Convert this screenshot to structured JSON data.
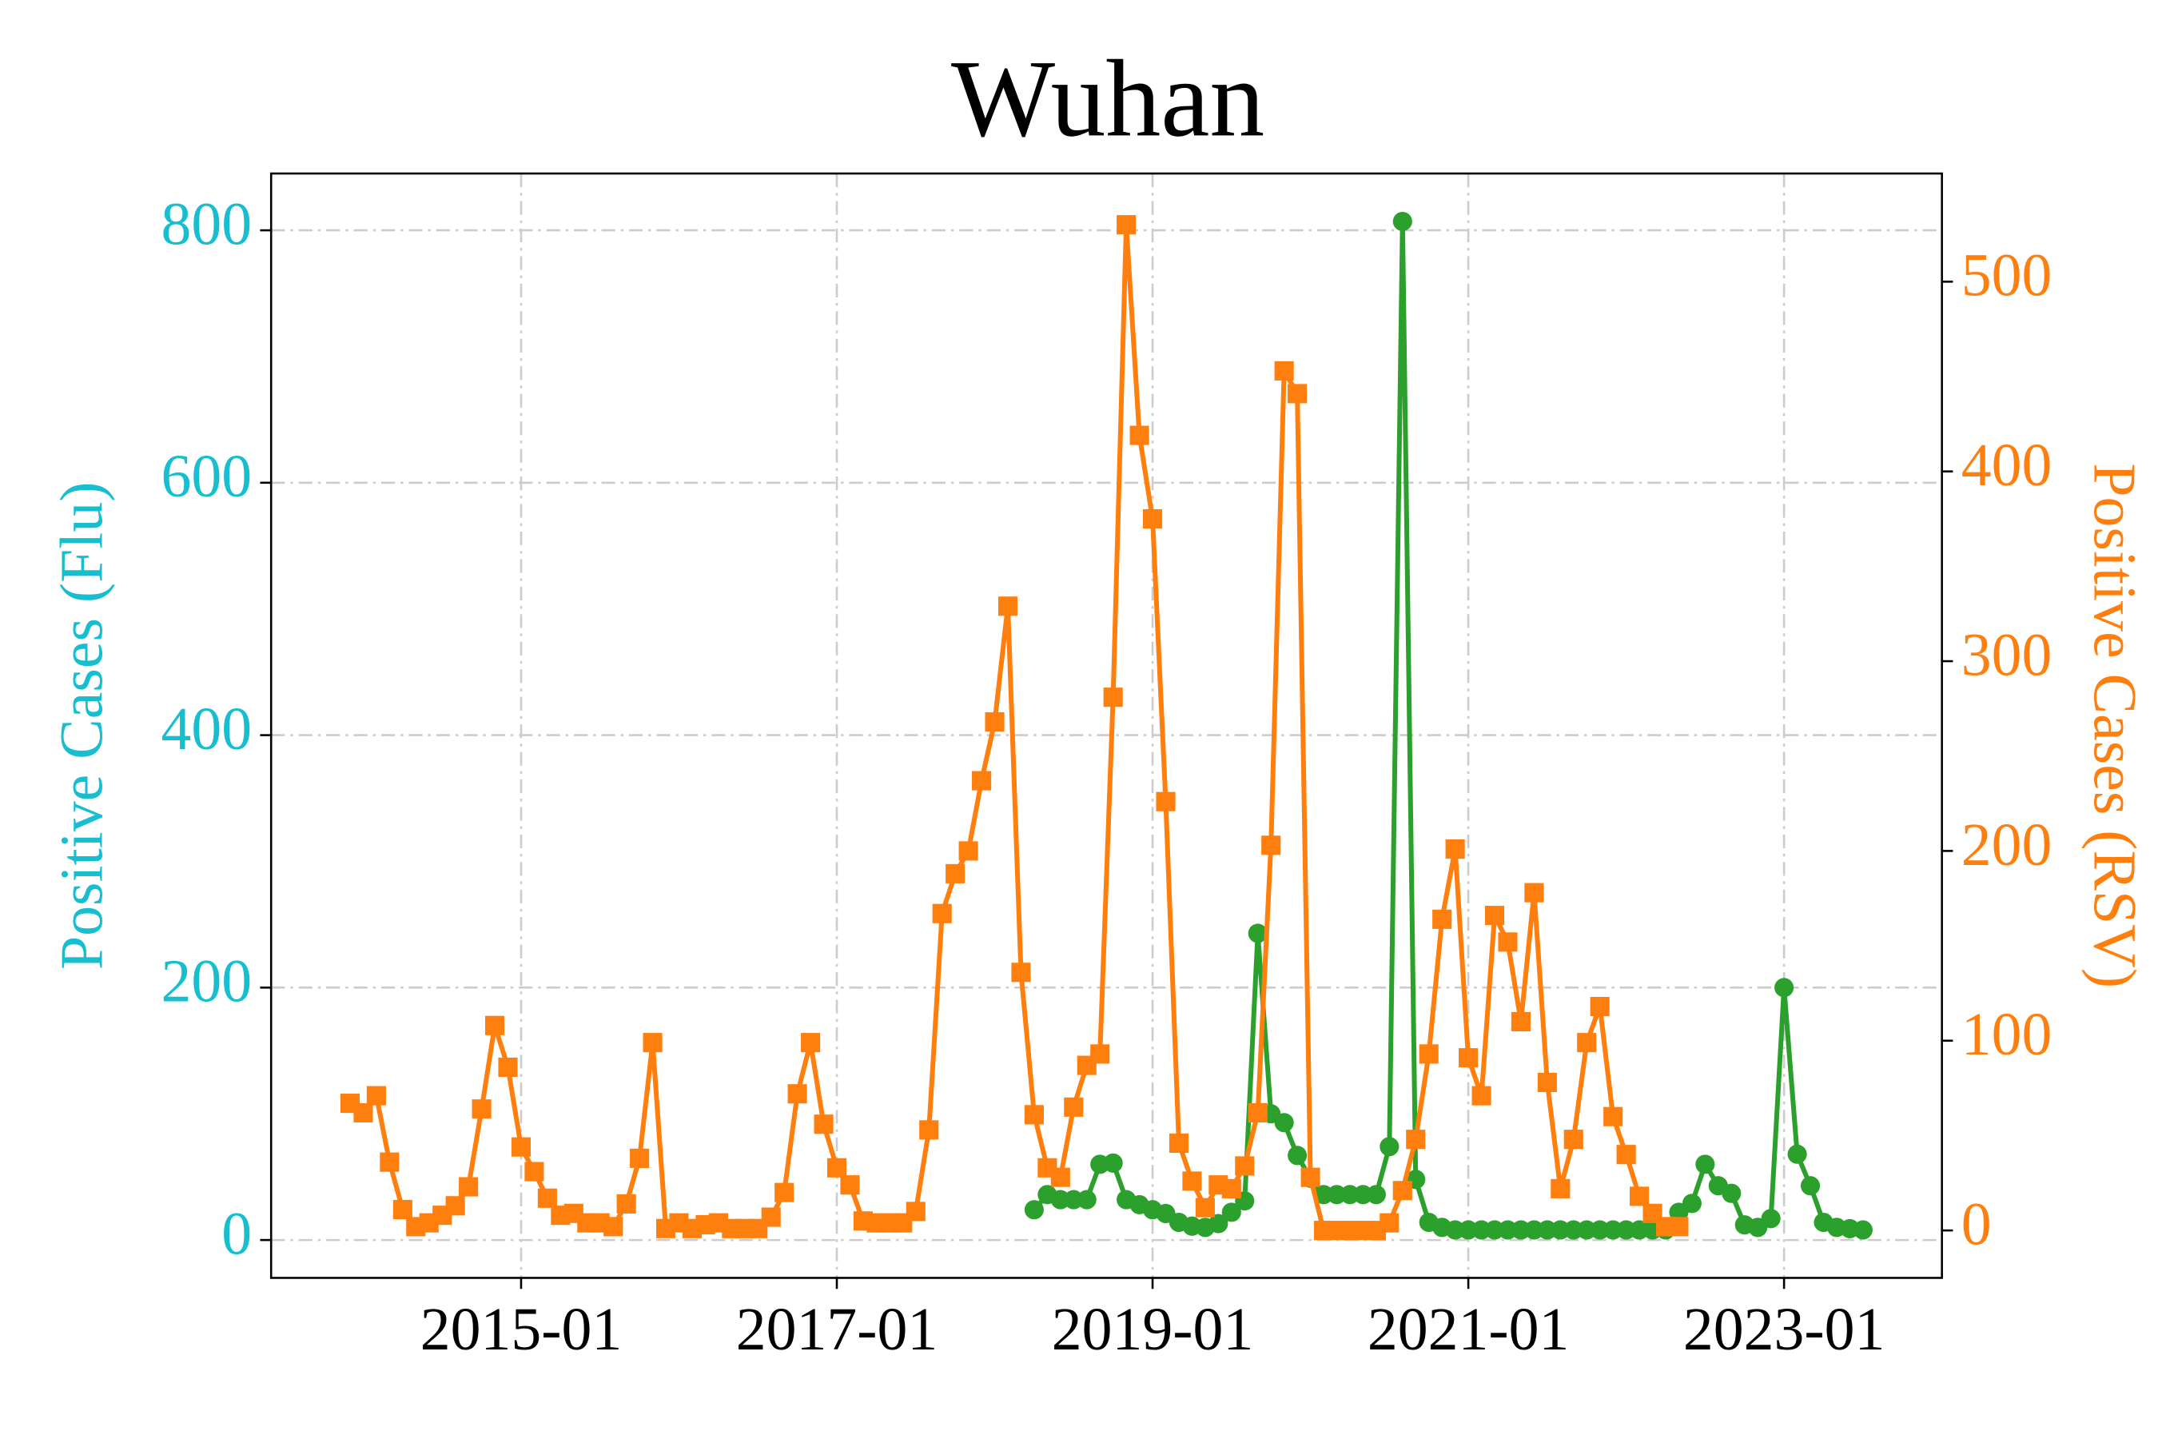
{
  "chart_data": {
    "type": "line",
    "title": "Wuhan",
    "ylabel": "Positive Cases (Flu)",
    "y2label": "Positive Cases (RSV)",
    "ylabel_color": "#17becf",
    "y2label_color": "#ff7f0e",
    "x": [
      "2013-12",
      "2014-01",
      "2014-02",
      "2014-03",
      "2014-04",
      "2014-05",
      "2014-06",
      "2014-07",
      "2014-08",
      "2014-09",
      "2014-10",
      "2014-11",
      "2014-12",
      "2015-01",
      "2015-02",
      "2015-03",
      "2015-04",
      "2015-05",
      "2015-06",
      "2015-07",
      "2015-08",
      "2015-09",
      "2015-10",
      "2015-11",
      "2015-12",
      "2016-01",
      "2016-02",
      "2016-03",
      "2016-04",
      "2016-05",
      "2016-06",
      "2016-07",
      "2016-08",
      "2016-09",
      "2016-10",
      "2016-11",
      "2016-12",
      "2017-01",
      "2017-02",
      "2017-03",
      "2017-04",
      "2017-05",
      "2017-06",
      "2017-07",
      "2017-08",
      "2017-09",
      "2017-10",
      "2017-11",
      "2017-12",
      "2018-01",
      "2018-02",
      "2018-03",
      "2018-04",
      "2018-05",
      "2018-06",
      "2018-07",
      "2018-08",
      "2018-09",
      "2018-10",
      "2018-11",
      "2018-12",
      "2019-01",
      "2019-02",
      "2019-03",
      "2019-04",
      "2019-05",
      "2019-06",
      "2019-07",
      "2019-08",
      "2019-09",
      "2019-10",
      "2019-11",
      "2019-12",
      "2020-01",
      "2020-02",
      "2020-03",
      "2020-04",
      "2020-05",
      "2020-06",
      "2020-07",
      "2020-08",
      "2020-09",
      "2020-10",
      "2020-11",
      "2020-12",
      "2021-01",
      "2021-02",
      "2021-03",
      "2021-04",
      "2021-05",
      "2021-06",
      "2021-07",
      "2021-08",
      "2021-09",
      "2021-10",
      "2021-11",
      "2021-12",
      "2022-01",
      "2022-02",
      "2022-03",
      "2022-04",
      "2022-05",
      "2022-06",
      "2022-07",
      "2022-08",
      "2022-09",
      "2022-10",
      "2022-11",
      "2022-12",
      "2023-01",
      "2023-02",
      "2023-03",
      "2023-04",
      "2023-05",
      "2023-06",
      "2023-07"
    ],
    "series": [
      {
        "color": "#2ca02c",
        "marker": "circle",
        "axis": "y",
        "values": [
          null,
          null,
          null,
          null,
          null,
          null,
          null,
          null,
          null,
          null,
          null,
          null,
          null,
          null,
          null,
          null,
          null,
          null,
          null,
          null,
          null,
          null,
          null,
          null,
          null,
          null,
          null,
          null,
          null,
          null,
          null,
          null,
          null,
          null,
          null,
          null,
          null,
          null,
          null,
          null,
          null,
          null,
          null,
          null,
          null,
          null,
          null,
          null,
          null,
          null,
          null,
          null,
          24,
          36,
          32,
          32,
          32,
          60,
          61,
          32,
          28,
          24,
          21,
          14,
          11,
          10,
          13,
          22,
          31,
          243,
          100,
          93,
          67,
          49,
          36,
          36,
          36,
          36,
          36,
          74,
          807,
          48,
          14,
          10,
          8,
          8,
          8,
          8,
          8,
          8,
          8,
          8,
          8,
          8,
          8,
          8,
          8,
          8,
          8,
          8,
          8,
          22,
          29,
          60,
          43,
          37,
          12,
          10,
          17,
          200,
          68,
          43,
          14,
          10,
          9,
          8
        ]
      },
      {
        "color": "#ff7f0e",
        "marker": "square",
        "axis": "y2",
        "values": [
          67,
          62,
          71,
          36,
          11,
          2,
          4,
          8,
          13,
          23,
          64,
          108,
          86,
          44,
          31,
          17,
          8,
          9,
          4,
          4,
          2,
          14,
          38,
          99,
          1,
          4,
          1,
          3,
          4,
          1,
          1,
          1,
          7,
          20,
          72,
          99,
          56,
          33,
          24,
          5,
          4,
          4,
          4,
          10,
          53,
          167,
          188,
          200,
          237,
          268,
          329,
          136,
          61,
          33,
          28,
          65,
          87,
          93,
          281,
          530,
          419,
          375,
          226,
          46,
          26,
          12,
          24,
          22,
          34,
          62,
          203,
          453,
          441,
          28,
          0,
          0,
          0,
          0,
          0,
          4,
          21,
          48,
          93,
          164,
          201,
          91,
          71,
          166,
          152,
          110,
          178,
          78,
          22,
          48,
          99,
          118,
          60,
          40,
          18,
          9,
          2,
          2,
          null,
          null,
          null,
          null,
          null,
          null,
          null,
          null,
          null,
          null,
          null,
          null,
          null,
          null
        ]
      }
    ],
    "xlim": [
      "2013-06",
      "2024-01"
    ],
    "xticks": [
      "2015-01",
      "2017-01",
      "2019-01",
      "2021-01",
      "2023-01"
    ],
    "ylim": [
      -30,
      845
    ],
    "yticks": [
      0,
      200,
      400,
      600,
      800
    ],
    "y2lim": [
      -25,
      557
    ],
    "y2ticks": [
      0,
      100,
      200,
      300,
      400,
      500
    ],
    "grid": true
  }
}
